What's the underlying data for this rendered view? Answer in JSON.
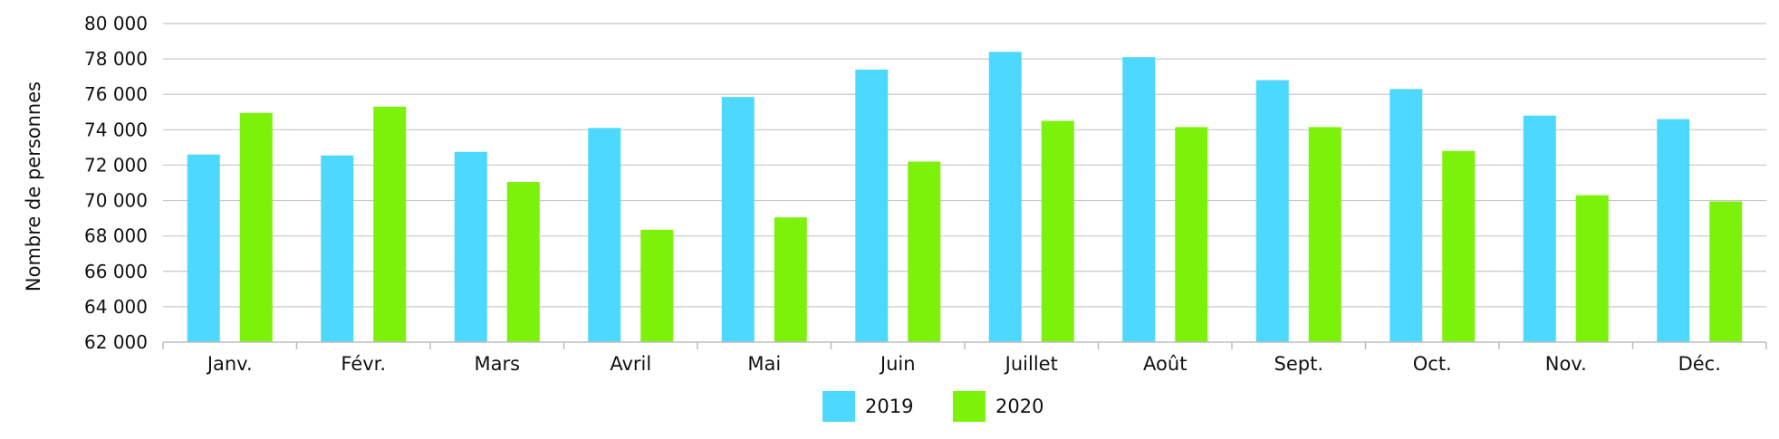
{
  "chart_data": {
    "type": "bar",
    "title": "",
    "xlabel": "",
    "ylabel": "Nombre de personnes",
    "ylim": [
      62000,
      80000
    ],
    "yticks": [
      62000,
      64000,
      66000,
      68000,
      70000,
      72000,
      74000,
      76000,
      78000,
      80000
    ],
    "ytick_labels": [
      "62 000",
      "64 000",
      "66 000",
      "68 000",
      "70 000",
      "72 000",
      "74 000",
      "76 000",
      "78 000",
      "80 000"
    ],
    "grid": true,
    "legend_position": "bottom-center",
    "categories": [
      "Janv.",
      "Févr.",
      "Mars",
      "Avril",
      "Mai",
      "Juin",
      "Juillet",
      "Août",
      "Sept.",
      "Oct.",
      "Nov.",
      "Déc."
    ],
    "series": [
      {
        "name": "2019",
        "color": "#4dd8ff",
        "values": [
          72600,
          72550,
          72750,
          74100,
          75850,
          77400,
          78400,
          78100,
          76800,
          76300,
          74800,
          74600
        ]
      },
      {
        "name": "2020",
        "color": "#7cf20a",
        "values": [
          74950,
          75300,
          71050,
          68350,
          69050,
          72200,
          74500,
          74150,
          74150,
          72800,
          70300,
          69950
        ]
      }
    ]
  }
}
